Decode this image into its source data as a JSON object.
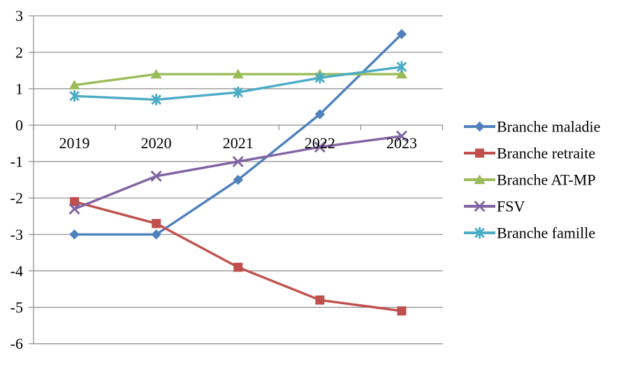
{
  "chart_data": {
    "type": "line",
    "title": "",
    "xlabel": "",
    "ylabel": "",
    "categories": [
      "2019",
      "2020",
      "2021",
      "2022",
      "2023"
    ],
    "series": [
      {
        "name": "Branche maladie",
        "marker": "diamond",
        "color": "#4F81BD",
        "values": [
          -3.0,
          -3.0,
          -1.5,
          0.3,
          2.5
        ]
      },
      {
        "name": "Branche retraite",
        "marker": "square",
        "color": "#C0504D",
        "values": [
          -2.1,
          -2.7,
          -3.9,
          -4.8,
          -5.1
        ]
      },
      {
        "name": "Branche AT-MP",
        "marker": "triangle",
        "color": "#9BBB59",
        "values": [
          1.1,
          1.4,
          1.4,
          1.4,
          1.4
        ]
      },
      {
        "name": "FSV",
        "marker": "x",
        "color": "#8064A2",
        "values": [
          -2.3,
          -1.4,
          -1.0,
          -0.6,
          -0.3
        ]
      },
      {
        "name": "Branche famille",
        "marker": "asterisk",
        "color": "#4BACC6",
        "values": [
          0.8,
          0.7,
          0.9,
          1.3,
          1.6
        ]
      }
    ],
    "ylim": [
      -6,
      3
    ],
    "ytick_step": 1,
    "ytick_labels": [
      "3",
      "2",
      "1",
      "0",
      "-1",
      "-2",
      "-3",
      "-4",
      "-5",
      "-6"
    ],
    "grid": true,
    "legend_position": "right",
    "gridline_color": "#8C8C8C",
    "axis_color": "#8C8C8C",
    "text_color": "#000000",
    "background_color": "#FFFFFF"
  }
}
